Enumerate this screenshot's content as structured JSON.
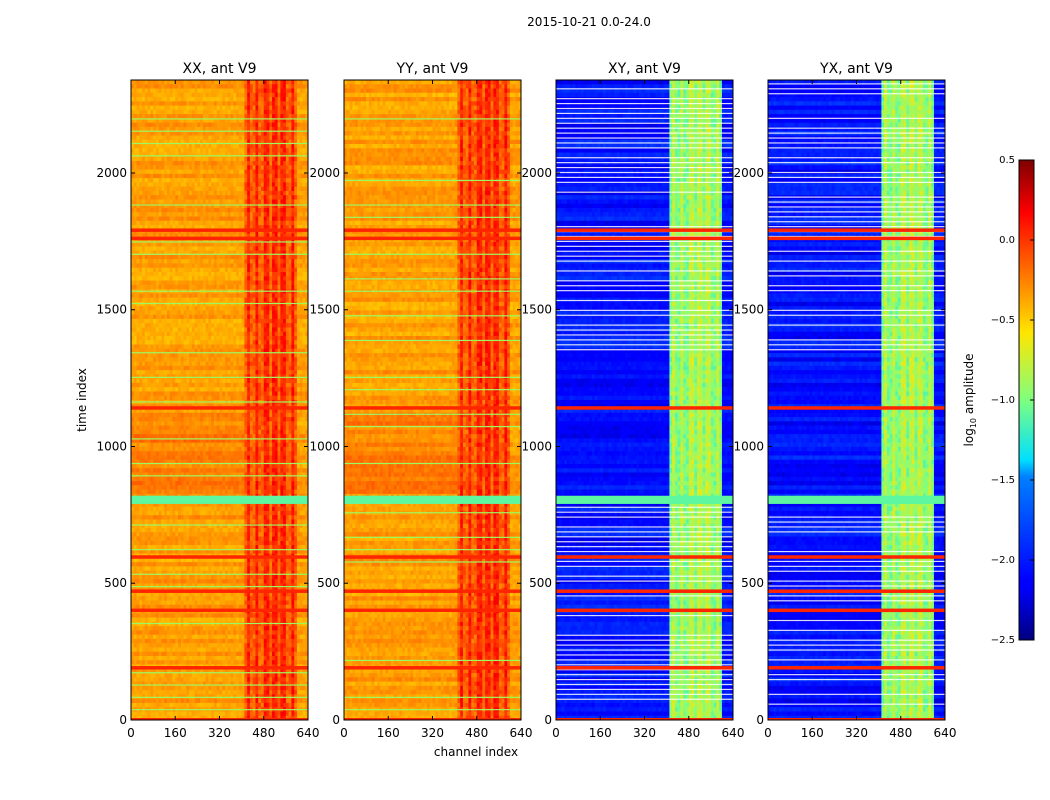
{
  "chart_data": {
    "type": "heatmap",
    "suptitle": "2015-10-21 0.0-24.0",
    "xlabel": "channel index",
    "ylabel": "time index",
    "xlim": [
      0,
      640
    ],
    "ylim": [
      0,
      2340
    ],
    "xticks": [
      0,
      160,
      320,
      480,
      640
    ],
    "yticks": [
      0,
      500,
      1000,
      1500,
      2000
    ],
    "panels": [
      {
        "title": "XX, ant V9",
        "kind": "parallel"
      },
      {
        "title": "YY, ant V9",
        "kind": "parallel"
      },
      {
        "title": "XY, ant V9",
        "kind": "cross"
      },
      {
        "title": "YX, ant V9",
        "kind": "cross"
      }
    ],
    "colorbar": {
      "label_main": "log",
      "label_sub": "10",
      "label_rest": " amplitude",
      "range": [
        -2.5,
        0.5
      ],
      "ticks": [
        0.5,
        0.0,
        -0.5,
        -1.0,
        -1.5,
        -2.0,
        -2.5
      ],
      "tick_labels": [
        "0.5",
        "0.0",
        "−0.5",
        "−1.0",
        "−1.5",
        "−2.0",
        "−2.5"
      ],
      "colormap": "jet"
    },
    "value_levels": {
      "parallel_base": -0.35,
      "parallel_bright_band": -0.05,
      "cross_base": -2.05,
      "cross_bright_band": -0.9
    },
    "bright_channel_band": [
      410,
      600
    ],
    "flag_rows": [
      0,
      190,
      400,
      470,
      595,
      1140,
      1760,
      1790
    ],
    "flag_row_value": 0.05,
    "low_band": [
      790,
      820
    ],
    "low_band_value": -1.1
  }
}
